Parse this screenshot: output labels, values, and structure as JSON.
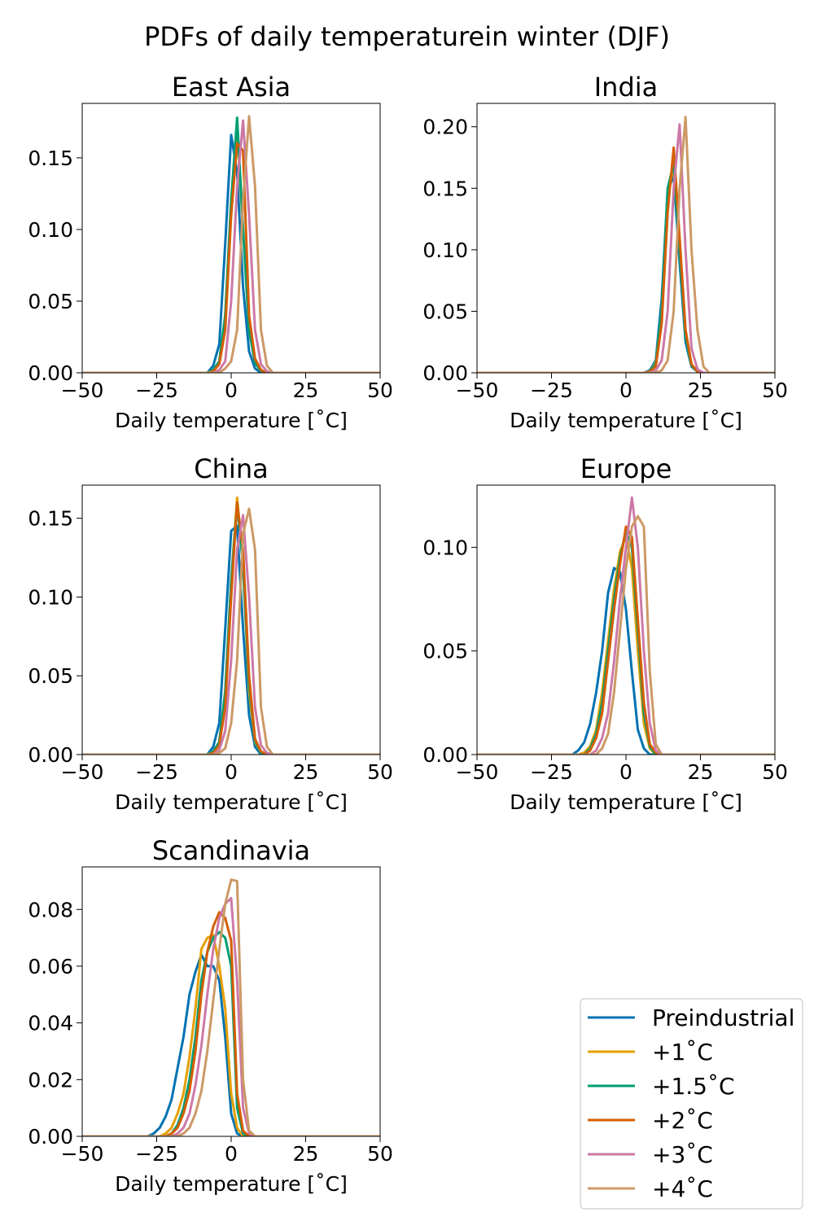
{
  "figure": {
    "title": "PDFs of daily temperaturein winter (DJF)"
  },
  "legend": {
    "placement": "lower-right",
    "entries": [
      "Preindustrial",
      "+1˚C",
      "+1.5˚C",
      "+2˚C",
      "+3˚C",
      "+4˚C"
    ]
  },
  "series_colors": [
    "#0072b2",
    "#e69f00",
    "#009e73",
    "#d55e00",
    "#cc79a7",
    "#cc9966"
  ],
  "chart_data": [
    {
      "type": "line",
      "title": "East Asia",
      "xlabel": "Daily temperature [˚C]",
      "ylabel": "",
      "xlim": [
        -50,
        50
      ],
      "ylim": [
        0,
        0.188
      ],
      "xticks": [
        -50,
        -25,
        0,
        25,
        50
      ],
      "xtick_labels": [
        "−50",
        "−25",
        "0",
        "25",
        "50"
      ],
      "yticks": [
        0.0,
        0.05,
        0.1,
        0.15
      ],
      "ytick_labels": [
        "0.00",
        "0.05",
        "0.10",
        "0.15"
      ],
      "grid": false,
      "x": [
        -50,
        -8,
        -6,
        -4,
        -2,
        0,
        2,
        4,
        6,
        8,
        10,
        12,
        14,
        50
      ],
      "series": [
        {
          "name": "Preindustrial",
          "values": [
            0,
            0,
            0.005,
            0.02,
            0.09,
            0.166,
            0.14,
            0.06,
            0.015,
            0.003,
            0,
            0,
            0,
            0
          ]
        },
        {
          "name": "+1˚C",
          "values": [
            0,
            0,
            0.002,
            0.008,
            0.04,
            0.12,
            0.17,
            0.1,
            0.03,
            0.007,
            0.001,
            0,
            0,
            0
          ]
        },
        {
          "name": "+1.5˚C",
          "values": [
            0,
            0,
            0.002,
            0.008,
            0.04,
            0.12,
            0.178,
            0.1,
            0.03,
            0.007,
            0.001,
            0,
            0,
            0
          ]
        },
        {
          "name": "+2˚C",
          "values": [
            0,
            0,
            0.001,
            0.006,
            0.03,
            0.11,
            0.16,
            0.155,
            0.04,
            0.01,
            0.002,
            0,
            0,
            0
          ]
        },
        {
          "name": "+3˚C",
          "values": [
            0,
            0,
            0,
            0.002,
            0.008,
            0.05,
            0.13,
            0.176,
            0.11,
            0.03,
            0.006,
            0.001,
            0,
            0
          ]
        },
        {
          "name": "+4˚C",
          "values": [
            0,
            0,
            0,
            0,
            0.003,
            0.008,
            0.03,
            0.12,
            0.179,
            0.13,
            0.03,
            0.005,
            0,
            0
          ]
        }
      ]
    },
    {
      "type": "line",
      "title": "India",
      "xlabel": "Daily temperature [˚C]",
      "ylabel": "",
      "xlim": [
        -50,
        50
      ],
      "ylim": [
        0,
        0.219
      ],
      "xticks": [
        -50,
        -25,
        0,
        25,
        50
      ],
      "xtick_labels": [
        "−50",
        "−25",
        "0",
        "25",
        "50"
      ],
      "yticks": [
        0.0,
        0.05,
        0.1,
        0.15,
        0.2
      ],
      "ytick_labels": [
        "0.00",
        "0.05",
        "0.10",
        "0.15",
        "0.20"
      ],
      "grid": false,
      "x": [
        -50,
        6,
        8,
        10,
        12,
        14,
        16,
        18,
        20,
        22,
        24,
        26,
        28,
        50
      ],
      "series": [
        {
          "name": "Preindustrial",
          "values": [
            0,
            0,
            0.002,
            0.01,
            0.06,
            0.148,
            0.16,
            0.09,
            0.025,
            0.005,
            0.001,
            0,
            0,
            0
          ]
        },
        {
          "name": "+1˚C",
          "values": [
            0,
            0,
            0.001,
            0.008,
            0.05,
            0.14,
            0.17,
            0.1,
            0.03,
            0.006,
            0.001,
            0,
            0,
            0
          ]
        },
        {
          "name": "+1.5˚C",
          "values": [
            0,
            0,
            0.001,
            0.007,
            0.05,
            0.15,
            0.17,
            0.1,
            0.03,
            0.006,
            0.001,
            0,
            0,
            0
          ]
        },
        {
          "name": "+2˚C",
          "values": [
            0,
            0,
            0.001,
            0.005,
            0.04,
            0.13,
            0.183,
            0.11,
            0.035,
            0.007,
            0.001,
            0,
            0,
            0
          ]
        },
        {
          "name": "+3˚C",
          "values": [
            0,
            0,
            0,
            0.002,
            0.01,
            0.05,
            0.15,
            0.202,
            0.1,
            0.02,
            0.003,
            0,
            0,
            0
          ]
        },
        {
          "name": "+4˚C",
          "values": [
            0,
            0,
            0,
            0,
            0.002,
            0.01,
            0.05,
            0.15,
            0.208,
            0.1,
            0.035,
            0.005,
            0,
            0
          ]
        }
      ]
    },
    {
      "type": "line",
      "title": "China",
      "xlabel": "Daily temperature [˚C]",
      "ylabel": "",
      "xlim": [
        -50,
        50
      ],
      "ylim": [
        0,
        0.171
      ],
      "xticks": [
        -50,
        -25,
        0,
        25,
        50
      ],
      "xtick_labels": [
        "−50",
        "−25",
        "0",
        "25",
        "50"
      ],
      "yticks": [
        0.0,
        0.05,
        0.1,
        0.15
      ],
      "ytick_labels": [
        "0.00",
        "0.05",
        "0.10",
        "0.15"
      ],
      "grid": false,
      "x": [
        -50,
        -8,
        -6,
        -4,
        -2,
        0,
        2,
        4,
        6,
        8,
        10,
        12,
        14,
        50
      ],
      "series": [
        {
          "name": "Preindustrial",
          "values": [
            0,
            0,
            0.005,
            0.02,
            0.08,
            0.142,
            0.145,
            0.08,
            0.025,
            0.005,
            0,
            0,
            0,
            0
          ]
        },
        {
          "name": "+1˚C",
          "values": [
            0,
            0,
            0.002,
            0.008,
            0.04,
            0.11,
            0.163,
            0.12,
            0.04,
            0.008,
            0.001,
            0,
            0,
            0
          ]
        },
        {
          "name": "+1.5˚C",
          "values": [
            0,
            0,
            0.002,
            0.008,
            0.04,
            0.11,
            0.159,
            0.12,
            0.045,
            0.009,
            0.001,
            0,
            0,
            0
          ]
        },
        {
          "name": "+2˚C",
          "values": [
            0,
            0,
            0.001,
            0.006,
            0.03,
            0.1,
            0.16,
            0.13,
            0.05,
            0.01,
            0.002,
            0,
            0,
            0
          ]
        },
        {
          "name": "+3˚C",
          "values": [
            0,
            0,
            0,
            0.003,
            0.015,
            0.06,
            0.13,
            0.152,
            0.1,
            0.03,
            0.006,
            0.001,
            0,
            0
          ]
        },
        {
          "name": "+4˚C",
          "values": [
            0,
            0,
            0,
            0.001,
            0.004,
            0.02,
            0.06,
            0.14,
            0.156,
            0.13,
            0.03,
            0.005,
            0,
            0
          ]
        }
      ]
    },
    {
      "type": "line",
      "title": "Europe",
      "xlabel": "Daily temperature [˚C]",
      "ylabel": "",
      "xlim": [
        -50,
        50
      ],
      "ylim": [
        0,
        0.13
      ],
      "xticks": [
        -50,
        -25,
        0,
        25,
        50
      ],
      "xtick_labels": [
        "−50",
        "−25",
        "0",
        "25",
        "50"
      ],
      "yticks": [
        0.0,
        0.05,
        0.1
      ],
      "ytick_labels": [
        "0.00",
        "0.05",
        "0.10"
      ],
      "grid": false,
      "x": [
        -50,
        -18,
        -16,
        -14,
        -12,
        -10,
        -8,
        -6,
        -4,
        -2,
        0,
        2,
        4,
        6,
        8,
        10,
        12,
        50
      ],
      "series": [
        {
          "name": "Preindustrial",
          "values": [
            0,
            0,
            0.002,
            0.006,
            0.015,
            0.03,
            0.05,
            0.078,
            0.09,
            0.088,
            0.07,
            0.04,
            0.012,
            0.003,
            0,
            0,
            0,
            0
          ]
        },
        {
          "name": "+1˚C",
          "values": [
            0,
            0,
            0,
            0.001,
            0.004,
            0.012,
            0.03,
            0.055,
            0.08,
            0.098,
            0.105,
            0.09,
            0.05,
            0.015,
            0.003,
            0,
            0,
            0
          ]
        },
        {
          "name": "+1.5˚C",
          "values": [
            0,
            0,
            0,
            0,
            0.003,
            0.01,
            0.025,
            0.05,
            0.075,
            0.095,
            0.108,
            0.1,
            0.06,
            0.02,
            0.004,
            0,
            0,
            0
          ]
        },
        {
          "name": "+2˚C",
          "values": [
            0,
            0,
            0,
            0,
            0.002,
            0.008,
            0.02,
            0.045,
            0.07,
            0.092,
            0.11,
            0.105,
            0.065,
            0.025,
            0.005,
            0.001,
            0,
            0
          ]
        },
        {
          "name": "+3˚C",
          "values": [
            0,
            0,
            0,
            0,
            0,
            0.002,
            0.008,
            0.02,
            0.045,
            0.075,
            0.1,
            0.124,
            0.1,
            0.05,
            0.015,
            0.002,
            0,
            0
          ]
        },
        {
          "name": "+4˚C",
          "values": [
            0,
            0,
            0,
            0,
            0,
            0,
            0.003,
            0.01,
            0.03,
            0.06,
            0.09,
            0.11,
            0.115,
            0.11,
            0.04,
            0.005,
            0,
            0
          ]
        }
      ]
    },
    {
      "type": "line",
      "title": "Scandinavia",
      "xlabel": "Daily temperature [˚C]",
      "ylabel": "",
      "xlim": [
        -50,
        50
      ],
      "ylim": [
        0,
        0.095
      ],
      "xticks": [
        -50,
        -25,
        0,
        25,
        50
      ],
      "xtick_labels": [
        "−50",
        "−25",
        "0",
        "25",
        "50"
      ],
      "yticks": [
        0.0,
        0.02,
        0.04,
        0.06,
        0.08
      ],
      "ytick_labels": [
        "0.00",
        "0.02",
        "0.04",
        "0.06",
        "0.08"
      ],
      "grid": false,
      "x": [
        -50,
        -28,
        -26,
        -24,
        -22,
        -20,
        -18,
        -16,
        -14,
        -12,
        -10,
        -8,
        -6,
        -4,
        -2,
        0,
        2,
        4,
        6,
        8,
        10,
        50
      ],
      "series": [
        {
          "name": "Preindustrial",
          "values": [
            0,
            0,
            0.001,
            0.003,
            0.007,
            0.013,
            0.024,
            0.035,
            0.05,
            0.058,
            0.064,
            0.06,
            0.06,
            0.055,
            0.035,
            0.008,
            0.001,
            0,
            0,
            0,
            0,
            0
          ]
        },
        {
          "name": "+1˚C",
          "values": [
            0,
            0,
            0,
            0,
            0.001,
            0.003,
            0.008,
            0.015,
            0.028,
            0.045,
            0.066,
            0.07,
            0.071,
            0.06,
            0.045,
            0.015,
            0.003,
            0,
            0,
            0,
            0,
            0
          ]
        },
        {
          "name": "+1.5˚C",
          "values": [
            0,
            0,
            0,
            0,
            0,
            0.001,
            0.004,
            0.01,
            0.02,
            0.035,
            0.055,
            0.065,
            0.07,
            0.072,
            0.07,
            0.06,
            0.01,
            0.001,
            0,
            0,
            0,
            0
          ]
        },
        {
          "name": "+2˚C",
          "values": [
            0,
            0,
            0,
            0,
            0,
            0.001,
            0.003,
            0.008,
            0.016,
            0.03,
            0.05,
            0.065,
            0.074,
            0.079,
            0.077,
            0.069,
            0.015,
            0.002,
            0,
            0,
            0,
            0
          ]
        },
        {
          "name": "+3˚C",
          "values": [
            0,
            0,
            0,
            0,
            0,
            0,
            0.001,
            0.003,
            0.008,
            0.018,
            0.032,
            0.05,
            0.066,
            0.077,
            0.082,
            0.084,
            0.055,
            0.01,
            0.001,
            0,
            0,
            0
          ]
        },
        {
          "name": "+4˚C",
          "values": [
            0,
            0,
            0,
            0,
            0,
            0,
            0,
            0.001,
            0.003,
            0.008,
            0.016,
            0.03,
            0.048,
            0.066,
            0.082,
            0.0905,
            0.09,
            0.02,
            0.002,
            0,
            0,
            0
          ]
        }
      ]
    }
  ]
}
